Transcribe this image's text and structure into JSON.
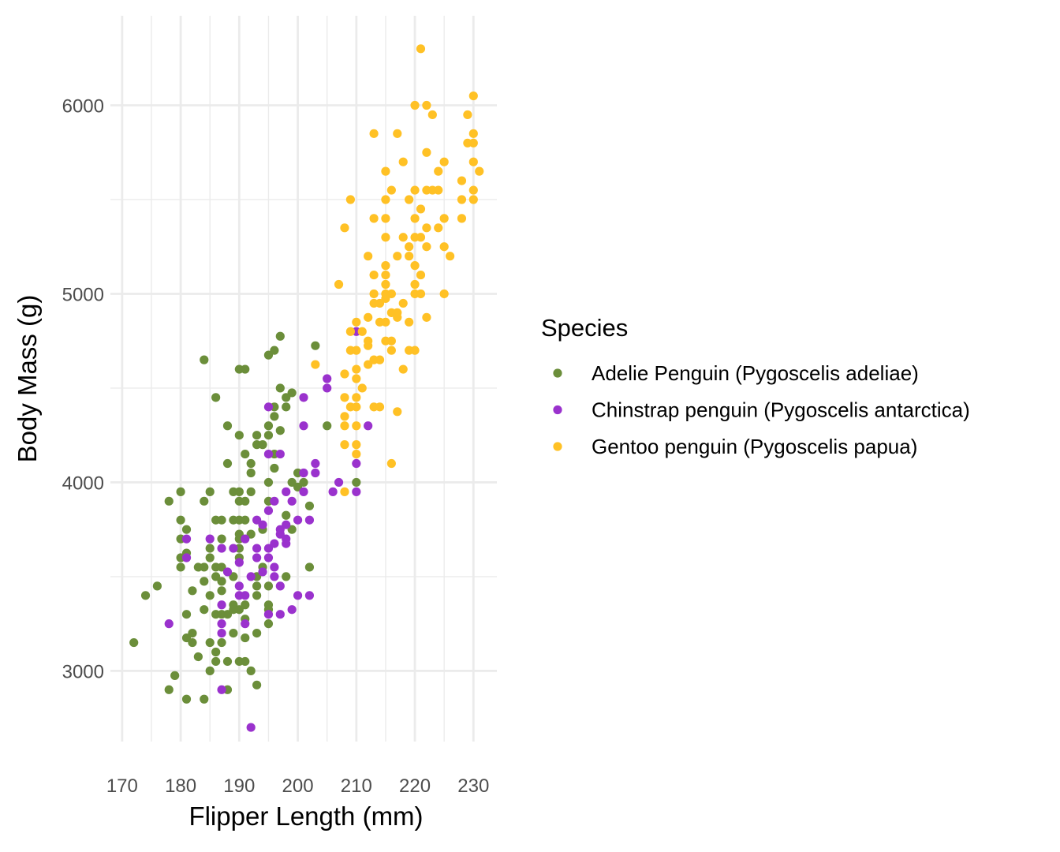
{
  "chart_data": {
    "type": "scatter",
    "title": "",
    "xlabel": "Flipper Length (mm)",
    "ylabel": "Body Mass (g)",
    "xlim": [
      168,
      234
    ],
    "ylim": [
      2625,
      6475
    ],
    "x_ticks": [
      "170",
      "180",
      "190",
      "200",
      "210",
      "220",
      "230"
    ],
    "y_ticks": [
      "3000",
      "4000",
      "5000",
      "6000"
    ],
    "grid": true,
    "theme": "minimal",
    "legend": {
      "title": "Species",
      "position": "right"
    },
    "series": [
      {
        "name": "Adelie Penguin (Pygoscelis adeliae)",
        "color": "#6B8E3A",
        "points": [
          [
            188,
            4100
          ],
          [
            192,
            4100
          ],
          [
            192,
            4050
          ],
          [
            196,
            4075
          ],
          [
            200,
            4050
          ],
          [
            195,
            4000
          ],
          [
            199,
            4000
          ],
          [
            201,
            4000
          ],
          [
            200,
            3975
          ],
          [
            180,
            3950
          ],
          [
            185,
            3950
          ],
          [
            189,
            3950
          ],
          [
            190,
            3950
          ],
          [
            192,
            3950
          ],
          [
            178,
            3900
          ],
          [
            184,
            3900
          ],
          [
            190,
            3900
          ],
          [
            191,
            3900
          ],
          [
            195,
            3900
          ],
          [
            202,
            3875
          ],
          [
            198,
            3825
          ],
          [
            180,
            3800
          ],
          [
            186,
            3800
          ],
          [
            187,
            3800
          ],
          [
            189,
            3800
          ],
          [
            190,
            3800
          ],
          [
            191,
            3800
          ],
          [
            181,
            3750
          ],
          [
            194,
            3750
          ],
          [
            199,
            3750
          ],
          [
            192,
            3725
          ],
          [
            190,
            3725
          ],
          [
            180,
            3700
          ],
          [
            187,
            3700
          ],
          [
            190,
            3700
          ],
          [
            185,
            3650
          ],
          [
            190,
            3650
          ],
          [
            181,
            3625
          ],
          [
            180,
            3600
          ],
          [
            185,
            3600
          ],
          [
            190,
            3600
          ],
          [
            180,
            3550
          ],
          [
            183,
            3550
          ],
          [
            184,
            3550
          ],
          [
            186,
            3550
          ],
          [
            187,
            3550
          ],
          [
            194,
            3550
          ],
          [
            202,
            3550
          ],
          [
            186,
            3500
          ],
          [
            189,
            3500
          ],
          [
            198,
            3500
          ],
          [
            193,
            3500
          ],
          [
            184,
            3475
          ],
          [
            187,
            3475
          ],
          [
            193,
            3450
          ],
          [
            195,
            3450
          ],
          [
            176,
            3450
          ],
          [
            182,
            3425
          ],
          [
            187,
            3425
          ],
          [
            174,
            3400
          ],
          [
            185,
            3400
          ],
          [
            193,
            3400
          ],
          [
            189,
            3350
          ],
          [
            191,
            3350
          ],
          [
            195,
            3350
          ],
          [
            184,
            3325
          ],
          [
            189,
            3325
          ],
          [
            190,
            3325
          ],
          [
            195,
            3325
          ],
          [
            181,
            3300
          ],
          [
            186,
            3300
          ],
          [
            187,
            3300
          ],
          [
            188,
            3300
          ],
          [
            191,
            3275
          ],
          [
            195,
            3250
          ],
          [
            182,
            3200
          ],
          [
            189,
            3200
          ],
          [
            193,
            3200
          ],
          [
            181,
            3175
          ],
          [
            191,
            3175
          ],
          [
            182,
            3150
          ],
          [
            185,
            3150
          ],
          [
            187,
            3150
          ],
          [
            172,
            3150
          ],
          [
            186,
            3100
          ],
          [
            183,
            3075
          ],
          [
            186,
            3050
          ],
          [
            188,
            3050
          ],
          [
            190,
            3050
          ],
          [
            191,
            3050
          ],
          [
            185,
            3000
          ],
          [
            192,
            3000
          ],
          [
            179,
            2975
          ],
          [
            193,
            2925
          ],
          [
            178,
            2900
          ],
          [
            188,
            2900
          ],
          [
            181,
            2850
          ],
          [
            184,
            2850
          ],
          [
            197,
            4775
          ],
          [
            184,
            4650
          ],
          [
            196,
            4700
          ],
          [
            195,
            4675
          ],
          [
            203,
            4725
          ],
          [
            190,
            4600
          ],
          [
            191,
            4600
          ],
          [
            197,
            4500
          ],
          [
            199,
            4475
          ],
          [
            198,
            4450
          ],
          [
            186,
            4450
          ],
          [
            196,
            4400
          ],
          [
            198,
            4400
          ],
          [
            196,
            4350
          ],
          [
            205,
            4300
          ],
          [
            188,
            4300
          ],
          [
            195,
            4300
          ],
          [
            197,
            4275
          ],
          [
            190,
            4250
          ],
          [
            193,
            4250
          ],
          [
            195,
            4250
          ],
          [
            193,
            4200
          ],
          [
            194,
            4200
          ],
          [
            191,
            4150
          ],
          [
            196,
            4150
          ],
          [
            210,
            4000
          ]
        ]
      },
      {
        "name": "Chinstrap penguin (Pygoscelis antarctica)",
        "color": "#9A32CD",
        "points": [
          [
            210,
            4800
          ],
          [
            205,
            4550
          ],
          [
            205,
            4500
          ],
          [
            201,
            4450
          ],
          [
            195,
            4400
          ],
          [
            201,
            4300
          ],
          [
            212,
            4300
          ],
          [
            195,
            4150
          ],
          [
            197,
            4150
          ],
          [
            210,
            4100
          ],
          [
            203,
            4100
          ],
          [
            203,
            4050
          ],
          [
            201,
            4050
          ],
          [
            207,
            4000
          ],
          [
            206,
            3950
          ],
          [
            210,
            3950
          ],
          [
            198,
            3950
          ],
          [
            201,
            3950
          ],
          [
            196,
            3900
          ],
          [
            199,
            3900
          ],
          [
            195,
            3850
          ],
          [
            200,
            3800
          ],
          [
            202,
            3800
          ],
          [
            193,
            3800
          ],
          [
            194,
            3775
          ],
          [
            197,
            3750
          ],
          [
            198,
            3775
          ],
          [
            197,
            3725
          ],
          [
            198,
            3700
          ],
          [
            198,
            3675
          ],
          [
            196,
            3675
          ],
          [
            195,
            3650
          ],
          [
            193,
            3650
          ],
          [
            191,
            3700
          ],
          [
            189,
            3650
          ],
          [
            187,
            3650
          ],
          [
            185,
            3700
          ],
          [
            181,
            3700
          ],
          [
            181,
            3600
          ],
          [
            190,
            3575
          ],
          [
            193,
            3600
          ],
          [
            195,
            3600
          ],
          [
            196,
            3550
          ],
          [
            194,
            3525
          ],
          [
            196,
            3500
          ],
          [
            192,
            3500
          ],
          [
            188,
            3525
          ],
          [
            197,
            3450
          ],
          [
            190,
            3450
          ],
          [
            190,
            3400
          ],
          [
            191,
            3400
          ],
          [
            200,
            3400
          ],
          [
            202,
            3400
          ],
          [
            187,
            3350
          ],
          [
            199,
            3325
          ],
          [
            195,
            3300
          ],
          [
            197,
            3300
          ],
          [
            187,
            3250
          ],
          [
            191,
            3250
          ],
          [
            187,
            3200
          ],
          [
            178,
            3250
          ],
          [
            187,
            2900
          ],
          [
            192,
            2700
          ]
        ]
      },
      {
        "name": "Gentoo penguin (Pygoscelis papua)",
        "color": "#FFC125",
        "points": [
          [
            221,
            6300
          ],
          [
            220,
            6000
          ],
          [
            222,
            6000
          ],
          [
            223,
            5950
          ],
          [
            230,
            6050
          ],
          [
            229,
            5950
          ],
          [
            213,
            5850
          ],
          [
            217,
            5850
          ],
          [
            230,
            5850
          ],
          [
            229,
            5800
          ],
          [
            230,
            5800
          ],
          [
            222,
            5750
          ],
          [
            218,
            5700
          ],
          [
            225,
            5700
          ],
          [
            230,
            5700
          ],
          [
            215,
            5650
          ],
          [
            224,
            5650
          ],
          [
            231,
            5650
          ],
          [
            228,
            5600
          ],
          [
            216,
            5550
          ],
          [
            220,
            5550
          ],
          [
            222,
            5550
          ],
          [
            223,
            5550
          ],
          [
            224,
            5550
          ],
          [
            230,
            5550
          ],
          [
            209,
            5500
          ],
          [
            215,
            5500
          ],
          [
            219,
            5500
          ],
          [
            228,
            5500
          ],
          [
            230,
            5500
          ],
          [
            221,
            5450
          ],
          [
            213,
            5400
          ],
          [
            215,
            5400
          ],
          [
            220,
            5400
          ],
          [
            225,
            5400
          ],
          [
            228,
            5400
          ],
          [
            208,
            5350
          ],
          [
            222,
            5350
          ],
          [
            224,
            5350
          ],
          [
            215,
            5300
          ],
          [
            218,
            5300
          ],
          [
            220,
            5300
          ],
          [
            221,
            5300
          ],
          [
            219,
            5250
          ],
          [
            222,
            5250
          ],
          [
            225,
            5250
          ],
          [
            212,
            5200
          ],
          [
            217,
            5200
          ],
          [
            219,
            5200
          ],
          [
            226,
            5200
          ],
          [
            215,
            5150
          ],
          [
            220,
            5150
          ],
          [
            213,
            5100
          ],
          [
            215,
            5100
          ],
          [
            221,
            5100
          ],
          [
            207,
            5050
          ],
          [
            215,
            5050
          ],
          [
            220,
            5050
          ],
          [
            213,
            5000
          ],
          [
            215,
            5000
          ],
          [
            216,
            5000
          ],
          [
            220,
            5000
          ],
          [
            221,
            5000
          ],
          [
            225,
            5000
          ],
          [
            213,
            4950
          ],
          [
            214,
            4950
          ],
          [
            218,
            4950
          ],
          [
            215,
            4975
          ],
          [
            212,
            4875
          ],
          [
            216,
            4900
          ],
          [
            217,
            4900
          ],
          [
            217,
            4875
          ],
          [
            222,
            4875
          ],
          [
            214,
            4850
          ],
          [
            210,
            4850
          ],
          [
            215,
            4850
          ],
          [
            219,
            4850
          ],
          [
            209,
            4800
          ],
          [
            211,
            4800
          ],
          [
            212,
            4750
          ],
          [
            215,
            4750
          ],
          [
            216,
            4750
          ],
          [
            212,
            4725
          ],
          [
            216,
            4700
          ],
          [
            209,
            4700
          ],
          [
            210,
            4700
          ],
          [
            219,
            4700
          ],
          [
            220,
            4700
          ],
          [
            213,
            4650
          ],
          [
            214,
            4650
          ],
          [
            203,
            4625
          ],
          [
            212,
            4625
          ],
          [
            208,
            4575
          ],
          [
            210,
            4600
          ],
          [
            218,
            4600
          ],
          [
            210,
            4550
          ],
          [
            211,
            4500
          ],
          [
            208,
            4450
          ],
          [
            210,
            4450
          ],
          [
            209,
            4400
          ],
          [
            210,
            4400
          ],
          [
            213,
            4400
          ],
          [
            214,
            4400
          ],
          [
            217,
            4375
          ],
          [
            208,
            4350
          ],
          [
            208,
            4300
          ],
          [
            210,
            4300
          ],
          [
            208,
            4200
          ],
          [
            210,
            4200
          ],
          [
            210,
            4150
          ],
          [
            216,
            4100
          ],
          [
            208,
            3950
          ]
        ]
      }
    ]
  }
}
